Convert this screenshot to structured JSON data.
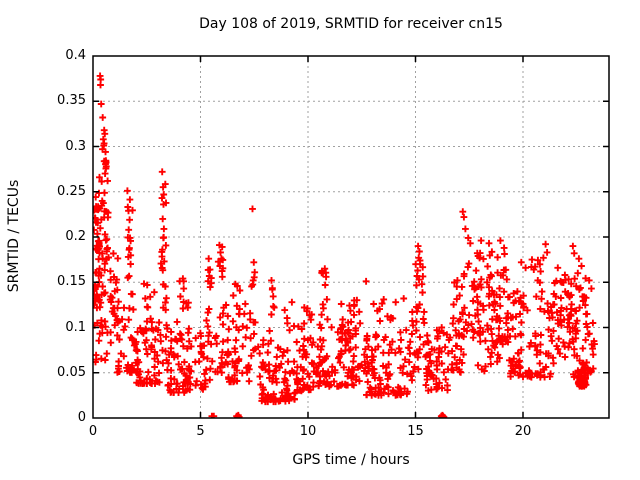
{
  "title": "Day 108 of 2019, SRMTID for receiver cn15",
  "colors": {
    "marker": "#ff0000",
    "grid": "#a0a0a0",
    "axis": "#000000",
    "background": "#ffffff",
    "text": "#000000"
  },
  "chart_data": {
    "type": "scatter",
    "title": "Day 108 of 2019, SRMTID for receiver cn15",
    "xlabel": "GPS time / hours",
    "ylabel": "SRMTID / TECUs",
    "xlim": [
      0,
      24
    ],
    "ylim": [
      0,
      0.4
    ],
    "xticks": [
      0,
      5,
      10,
      15,
      20
    ],
    "xtick_labels": [
      "0",
      "5",
      "10",
      "15",
      "20"
    ],
    "yticks": [
      0,
      0.05,
      0.1,
      0.15,
      0.2,
      0.25,
      0.3,
      0.35,
      0.4
    ],
    "ytick_labels": [
      "0",
      "0.05",
      "0.1",
      "0.15",
      "0.2",
      "0.25",
      "0.3",
      "0.35",
      "0.4"
    ],
    "grid": true,
    "legend_position": "none",
    "marker": "plus",
    "series_name": "SRMTID",
    "outlier_points": [
      [
        0.33,
        0.378
      ],
      [
        0.36,
        0.374
      ],
      [
        0.35,
        0.368
      ],
      [
        0.38,
        0.347
      ],
      [
        0.45,
        0.332
      ],
      [
        0.52,
        0.318
      ],
      [
        0.55,
        0.314
      ],
      [
        0.48,
        0.308
      ],
      [
        0.5,
        0.301
      ],
      [
        0.44,
        0.297
      ],
      [
        0.58,
        0.294
      ],
      [
        0.62,
        0.278
      ],
      [
        0.3,
        0.266
      ],
      [
        0.68,
        0.262
      ],
      [
        1.6,
        0.251
      ],
      [
        1.65,
        0.229
      ],
      [
        1.7,
        0.219
      ],
      [
        1.66,
        0.208
      ],
      [
        1.72,
        0.199
      ],
      [
        1.68,
        0.186
      ],
      [
        1.75,
        0.17
      ],
      [
        1.62,
        0.155
      ],
      [
        1.78,
        0.137
      ],
      [
        3.22,
        0.272
      ],
      [
        3.26,
        0.255
      ],
      [
        3.21,
        0.243
      ],
      [
        3.28,
        0.236
      ],
      [
        3.24,
        0.22
      ],
      [
        3.3,
        0.209
      ],
      [
        3.27,
        0.199
      ],
      [
        3.23,
        0.186
      ],
      [
        3.31,
        0.173
      ],
      [
        2.52,
        0.147
      ],
      [
        2.85,
        0.139
      ],
      [
        4.18,
        0.154
      ],
      [
        4.22,
        0.143
      ],
      [
        5.38,
        0.176
      ],
      [
        5.44,
        0.164
      ],
      [
        5.88,
        0.191
      ],
      [
        5.93,
        0.183
      ],
      [
        5.97,
        0.176
      ],
      [
        5.9,
        0.168
      ],
      [
        6.62,
        0.148
      ],
      [
        7.42,
        0.231
      ],
      [
        7.48,
        0.172
      ],
      [
        7.52,
        0.161
      ],
      [
        7.45,
        0.152
      ],
      [
        8.3,
        0.152
      ],
      [
        8.34,
        0.142
      ],
      [
        9.25,
        0.128
      ],
      [
        9.95,
        0.118
      ],
      [
        10.78,
        0.165
      ],
      [
        10.84,
        0.156
      ],
      [
        10.8,
        0.147
      ],
      [
        10.88,
        0.131
      ],
      [
        11.55,
        0.126
      ],
      [
        12.15,
        0.13
      ],
      [
        12.7,
        0.151
      ],
      [
        13.05,
        0.126
      ],
      [
        13.52,
        0.131
      ],
      [
        14.08,
        0.128
      ],
      [
        14.45,
        0.132
      ],
      [
        15.12,
        0.19
      ],
      [
        15.18,
        0.184
      ],
      [
        15.15,
        0.177
      ],
      [
        15.22,
        0.17
      ],
      [
        15.1,
        0.163
      ],
      [
        16.95,
        0.152
      ],
      [
        17.2,
        0.228
      ],
      [
        17.25,
        0.222
      ],
      [
        17.32,
        0.209
      ],
      [
        17.45,
        0.199
      ],
      [
        17.55,
        0.193
      ],
      [
        18.05,
        0.196
      ],
      [
        18.42,
        0.193
      ],
      [
        18.95,
        0.196
      ],
      [
        19.12,
        0.188
      ],
      [
        19.92,
        0.172
      ],
      [
        20.12,
        0.166
      ],
      [
        20.42,
        0.175
      ],
      [
        20.5,
        0.164
      ],
      [
        20.95,
        0.177
      ],
      [
        21.05,
        0.192
      ],
      [
        21.12,
        0.183
      ],
      [
        21.62,
        0.166
      ],
      [
        21.95,
        0.158
      ],
      [
        22.32,
        0.19
      ],
      [
        22.38,
        0.182
      ],
      [
        22.6,
        0.176
      ],
      [
        22.72,
        0.168
      ],
      [
        22.55,
        0.16
      ],
      [
        23.08,
        0.152
      ],
      [
        23.18,
        0.143
      ],
      [
        23.25,
        0.105
      ],
      [
        23.3,
        0.085
      ]
    ],
    "baseline_points": [
      [
        5.53,
        0.002
      ],
      [
        5.62,
        0.002
      ],
      [
        6.68,
        0.002
      ],
      [
        6.72,
        0.001
      ],
      [
        6.76,
        0.003
      ],
      [
        6.8,
        0.001
      ],
      [
        6.73,
        0.002
      ],
      [
        16.2,
        0.002
      ],
      [
        16.24,
        0.001
      ],
      [
        16.28,
        0.002
      ],
      [
        16.32,
        0.001
      ],
      [
        16.25,
        0.003
      ]
    ],
    "dense_clusters": [
      [
        0.02,
        0.35,
        0.1,
        0.26,
        35,
        "mid"
      ],
      [
        0.05,
        0.75,
        0.155,
        0.25,
        40,
        "mid"
      ],
      [
        0.1,
        0.9,
        0.06,
        0.155,
        30,
        "mid"
      ],
      [
        0.35,
        0.7,
        0.26,
        0.32,
        8,
        "mid"
      ],
      [
        0.8,
        1.2,
        0.1,
        0.19,
        18,
        "mid"
      ],
      [
        1.1,
        2.1,
        0.05,
        0.125,
        40,
        "low"
      ],
      [
        1.55,
        1.85,
        0.13,
        0.25,
        10,
        "mid"
      ],
      [
        2.0,
        3.1,
        0.038,
        0.115,
        55,
        "low"
      ],
      [
        2.3,
        3.0,
        0.115,
        0.15,
        5,
        "mid"
      ],
      [
        3.1,
        3.45,
        0.05,
        0.135,
        12,
        "mid"
      ],
      [
        3.15,
        3.4,
        0.14,
        0.27,
        12,
        "mid"
      ],
      [
        3.45,
        5.25,
        0.028,
        0.1,
        85,
        "low"
      ],
      [
        3.9,
        4.45,
        0.1,
        0.155,
        9,
        "mid"
      ],
      [
        5.25,
        5.65,
        0.04,
        0.145,
        14,
        "mid"
      ],
      [
        5.3,
        5.55,
        0.145,
        0.175,
        5,
        "mid"
      ],
      [
        5.65,
        6.25,
        0.05,
        0.125,
        20,
        "low"
      ],
      [
        5.8,
        6.05,
        0.155,
        0.19,
        7,
        "mid"
      ],
      [
        6.25,
        7.3,
        0.04,
        0.125,
        50,
        "low"
      ],
      [
        6.4,
        7.1,
        0.125,
        0.15,
        4,
        "mid"
      ],
      [
        7.3,
        7.75,
        0.05,
        0.17,
        13,
        "mid"
      ],
      [
        7.75,
        9.45,
        0.018,
        0.088,
        90,
        "low"
      ],
      [
        8.2,
        8.45,
        0.09,
        0.152,
        6,
        "mid"
      ],
      [
        8.8,
        9.4,
        0.088,
        0.12,
        5,
        "mid"
      ],
      [
        9.45,
        10.45,
        0.03,
        0.105,
        50,
        "low"
      ],
      [
        9.8,
        10.2,
        0.105,
        0.128,
        5,
        "mid"
      ],
      [
        10.45,
        11.15,
        0.035,
        0.105,
        35,
        "low"
      ],
      [
        10.6,
        10.95,
        0.105,
        0.165,
        8,
        "mid"
      ],
      [
        11.15,
        12.65,
        0.035,
        0.11,
        75,
        "low"
      ],
      [
        11.8,
        12.4,
        0.11,
        0.132,
        7,
        "mid"
      ],
      [
        12.65,
        14.65,
        0.025,
        0.105,
        95,
        "low"
      ],
      [
        12.9,
        14.5,
        0.105,
        0.13,
        8,
        "mid"
      ],
      [
        14.65,
        15.05,
        0.04,
        0.12,
        18,
        "mid"
      ],
      [
        15.0,
        15.35,
        0.12,
        0.19,
        12,
        "mid"
      ],
      [
        15.05,
        15.45,
        0.05,
        0.12,
        12,
        "mid"
      ],
      [
        15.45,
        16.55,
        0.03,
        0.1,
        55,
        "low"
      ],
      [
        16.55,
        17.25,
        0.05,
        0.13,
        32,
        "mid"
      ],
      [
        16.8,
        17.2,
        0.13,
        0.16,
        5,
        "mid"
      ],
      [
        17.25,
        17.75,
        0.08,
        0.185,
        18,
        "mid"
      ],
      [
        17.75,
        19.35,
        0.075,
        0.185,
        90,
        "mid"
      ],
      [
        17.9,
        19.3,
        0.05,
        0.075,
        10,
        "mid"
      ],
      [
        19.35,
        20.25,
        0.045,
        0.145,
        48,
        "low"
      ],
      [
        20.25,
        21.3,
        0.045,
        0.135,
        42,
        "low"
      ],
      [
        20.3,
        20.9,
        0.135,
        0.175,
        8,
        "mid"
      ],
      [
        21.3,
        22.3,
        0.06,
        0.158,
        55,
        "mid"
      ],
      [
        22.3,
        23.0,
        0.04,
        0.155,
        40,
        "mid"
      ],
      [
        22.55,
        22.95,
        0.035,
        0.062,
        45,
        "low"
      ],
      [
        23.0,
        23.35,
        0.045,
        0.1,
        12,
        "mid"
      ]
    ]
  }
}
